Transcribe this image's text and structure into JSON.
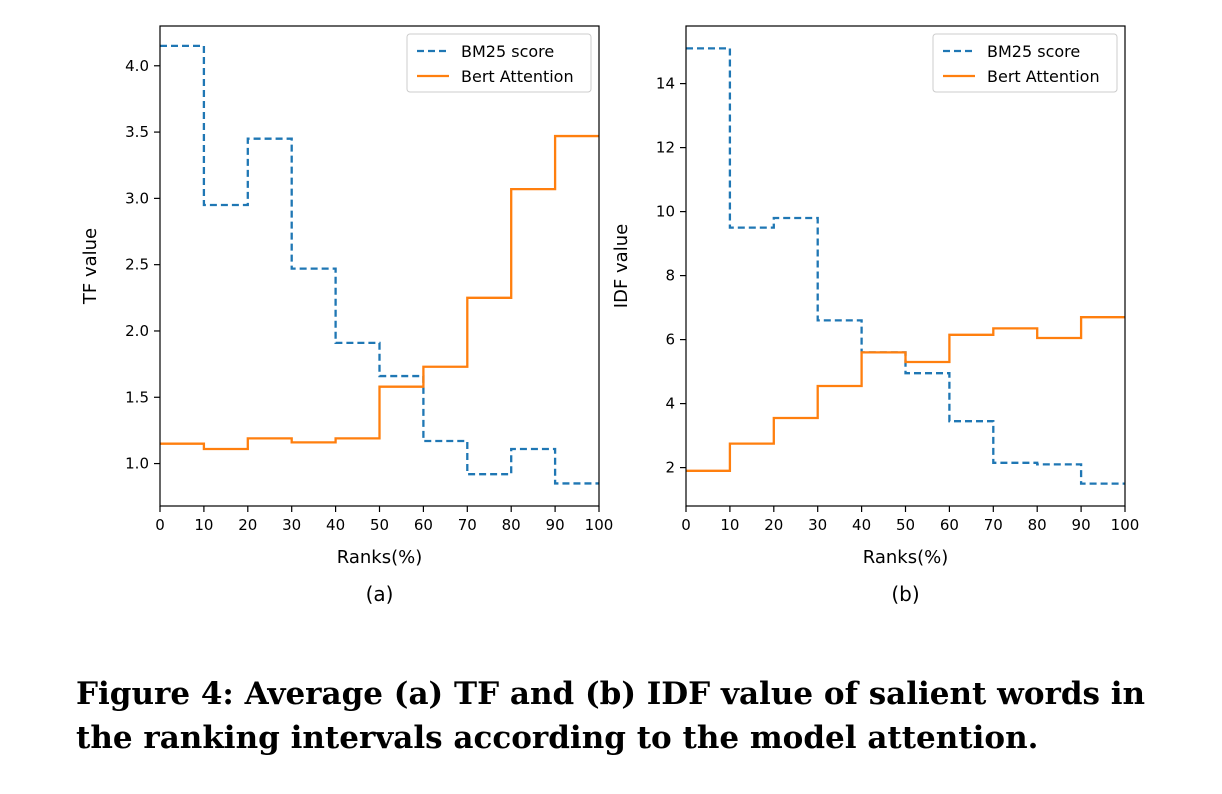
{
  "caption": "Figure 4: Average (a) TF and (b) IDF value of salient words in the ranking intervals according to the model attention.",
  "colors": {
    "bm25": "#1f77b4",
    "bert": "#ff7f0e"
  },
  "chart_data": [
    {
      "type": "line",
      "panel_label": "(a)",
      "xlabel": "Ranks(%)",
      "ylabel": "TF value",
      "xlim": [
        0,
        100
      ],
      "ylim": [
        0.68,
        4.3
      ],
      "xticks": [
        0,
        10,
        20,
        30,
        40,
        50,
        60,
        70,
        80,
        90,
        100
      ],
      "yticks": [
        1.0,
        1.5,
        2.0,
        2.5,
        3.0,
        3.5,
        4.0
      ],
      "ytick_labels": [
        "1.0",
        "1.5",
        "2.0",
        "2.5",
        "3.0",
        "3.5",
        "4.0"
      ],
      "legend": {
        "position": "top-right"
      },
      "x": [
        0,
        10,
        20,
        30,
        40,
        50,
        60,
        70,
        80,
        90,
        100
      ],
      "series": [
        {
          "name": "BM25 score",
          "style": "dashed",
          "values": [
            4.15,
            2.95,
            3.45,
            2.47,
            1.91,
            1.66,
            1.17,
            0.92,
            1.11,
            0.85,
            0.85
          ]
        },
        {
          "name": "Bert Attention",
          "style": "solid",
          "values": [
            1.15,
            1.11,
            1.19,
            1.16,
            1.19,
            1.58,
            1.73,
            2.25,
            3.07,
            3.47,
            3.47
          ]
        }
      ]
    },
    {
      "type": "line",
      "panel_label": "(b)",
      "xlabel": "Ranks(%)",
      "ylabel": "IDF value",
      "xlim": [
        0,
        100
      ],
      "ylim": [
        0.8,
        15.8
      ],
      "xticks": [
        0,
        10,
        20,
        30,
        40,
        50,
        60,
        70,
        80,
        90,
        100
      ],
      "yticks": [
        2,
        4,
        6,
        8,
        10,
        12,
        14
      ],
      "ytick_labels": [
        "2",
        "4",
        "6",
        "8",
        "10",
        "12",
        "14"
      ],
      "legend": {
        "position": "top-right"
      },
      "x": [
        0,
        10,
        20,
        30,
        40,
        50,
        60,
        70,
        80,
        90,
        100
      ],
      "series": [
        {
          "name": "BM25 score",
          "style": "dashed",
          "values": [
            15.1,
            9.5,
            9.8,
            6.6,
            5.6,
            4.95,
            3.45,
            2.15,
            2.1,
            1.5,
            1.5
          ]
        },
        {
          "name": "Bert Attention",
          "style": "solid",
          "values": [
            1.9,
            2.75,
            3.55,
            4.55,
            5.6,
            5.3,
            6.15,
            6.35,
            6.05,
            6.7,
            6.7
          ]
        }
      ]
    }
  ]
}
